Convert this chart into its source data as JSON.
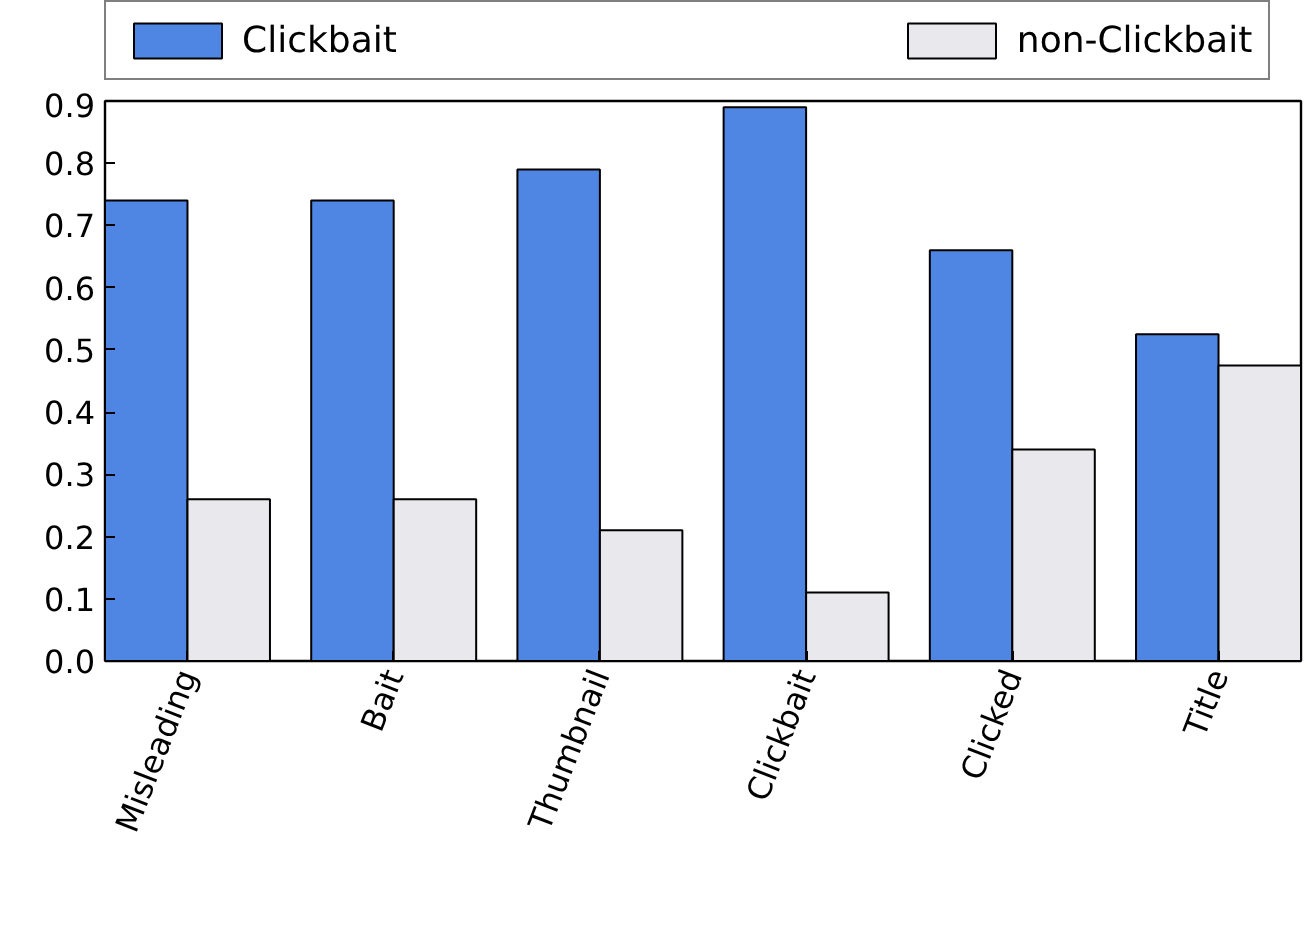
{
  "chart_data": {
    "type": "bar",
    "categories": [
      "Misleading",
      "Bait",
      "Thumbnail",
      "Clickbait",
      "Clicked",
      "Title"
    ],
    "series": [
      {
        "name": "Clickbait",
        "color": "#4f86e3",
        "values": [
          0.74,
          0.74,
          0.79,
          0.89,
          0.66,
          0.525
        ]
      },
      {
        "name": "non-Clickbait",
        "color": "#e8e8ed",
        "values": [
          0.26,
          0.26,
          0.21,
          0.11,
          0.34,
          0.475
        ]
      }
    ],
    "ylim": [
      0,
      0.9
    ],
    "yticks": [
      {
        "value": 0,
        "label": "0.0"
      },
      0.1,
      0.2,
      0.3,
      0.4,
      0.5,
      0.6,
      0.7,
      0.8,
      0.9
    ],
    "legend": "top",
    "grid": false
  }
}
